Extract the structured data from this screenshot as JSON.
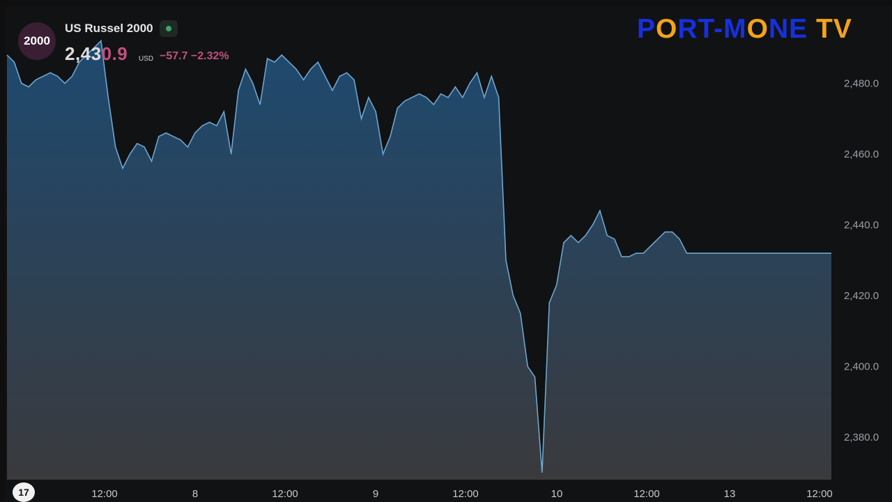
{
  "header": {
    "badge": "2000",
    "symbol": "US Russel 2000",
    "price_main": "2,43",
    "price_tail": "0.9",
    "currency": "USD",
    "change": "−57.7",
    "change_pct": "−2.32%"
  },
  "brand": {
    "left": "P",
    "o1": "O",
    "mid": "RT-M",
    "o2": "O",
    "right": "NE",
    "tv": "TV"
  },
  "tv_logo": "17",
  "colors": {
    "line": "#6ea6d0",
    "fill_top": "#1e4a70",
    "fill_bottom": "#3a3a3d",
    "up_volume": "#2e8a6a",
    "down_volume": "#b0607e",
    "axis_text": "#9aa0a6"
  },
  "chart_data": {
    "type": "area",
    "title": "",
    "xlabel": "",
    "ylabel": "",
    "x_tick_labels": [
      "12:00",
      "8",
      "12:00",
      "9",
      "12:00",
      "10",
      "12:00",
      "13",
      "12:00"
    ],
    "y_tick_labels": [
      "2,480.0",
      "2,460.0",
      "2,440.0",
      "2,420.0",
      "2,400.0",
      "2,380.0"
    ],
    "y_ticks": [
      2480,
      2460,
      2440,
      2420,
      2400,
      2380
    ],
    "ylim": [
      2368,
      2500
    ],
    "grid": false,
    "series": [
      {
        "x": [
          0,
          0.4,
          0.8,
          1.2,
          1.6,
          2.0,
          2.4,
          2.8,
          3.2,
          3.6,
          4.0,
          4.4,
          4.8,
          5.2,
          5.6,
          6.0,
          6.4,
          6.6,
          6.8,
          7.2,
          7.6,
          8.0,
          8.4,
          8.8,
          9.2,
          9.6,
          10.0,
          10.4,
          10.8,
          11.2,
          11.6,
          12.0,
          12.4,
          12.8,
          13.2,
          13.6,
          14.0,
          14.4,
          14.8,
          15.2,
          15.6,
          16.0,
          16.4,
          16.8,
          17.2,
          17.6,
          18.0,
          18.4,
          18.8,
          19.2,
          19.6,
          20.0,
          20.4,
          20.8,
          21.2,
          21.6,
          22.0,
          22.4,
          22.8,
          23.2,
          23.6,
          24.0,
          24.4,
          24.8,
          25.2,
          25.6,
          26.0,
          26.4,
          26.8,
          27.2,
          27.6,
          28.0,
          28.4,
          28.8,
          29.2,
          29.6,
          30.0,
          30.4,
          30.8,
          31.2,
          31.6,
          32.0,
          32.4,
          32.8,
          33.2,
          33.6,
          34.0,
          34.4,
          34.8,
          35.2,
          35.4,
          35.6,
          36.0,
          36.4,
          36.8,
          37.2,
          37.6,
          38.0,
          38.4,
          38.8,
          39.2,
          39.6,
          40.0,
          40.4,
          40.8,
          41.2,
          41.6,
          42.0,
          42.4,
          42.8,
          43.2,
          43.6,
          44.0,
          44.4,
          44.8,
          45.2,
          45.6
        ],
        "y": [
          2488,
          2486,
          2480,
          2479,
          2481,
          2482,
          2483,
          2482,
          2480,
          2482,
          2486,
          2488,
          2490,
          2492,
          2476,
          2462,
          2456,
          2458,
          2460,
          2463,
          2462,
          2458,
          2465,
          2466,
          2465,
          2464,
          2462,
          2466,
          2468,
          2469,
          2468,
          2472,
          2460,
          2478,
          2484,
          2480,
          2474,
          2487,
          2486,
          2488,
          2486,
          2484,
          2481,
          2484,
          2486,
          2482,
          2478,
          2482,
          2483,
          2481,
          2470,
          2476,
          2472,
          2460,
          2465,
          2473,
          2475,
          2476,
          2477,
          2476,
          2474,
          2477,
          2476,
          2479,
          2476,
          2480,
          2483,
          2476,
          2482,
          2476,
          2430,
          2420,
          2415,
          2400,
          2397,
          2370,
          2418,
          2423,
          2435,
          2437,
          2435,
          2437,
          2440,
          2444,
          2437,
          2436,
          2431,
          2431,
          2432,
          2432,
          2433,
          2434,
          2436,
          2438,
          2438,
          2436,
          2432,
          2432,
          2432,
          2432,
          2432,
          2432,
          2432,
          2432,
          2432,
          2432,
          2432,
          2432,
          2432,
          2432,
          2432,
          2432,
          2432,
          2432,
          2432,
          2432,
          2432
        ]
      }
    ]
  }
}
